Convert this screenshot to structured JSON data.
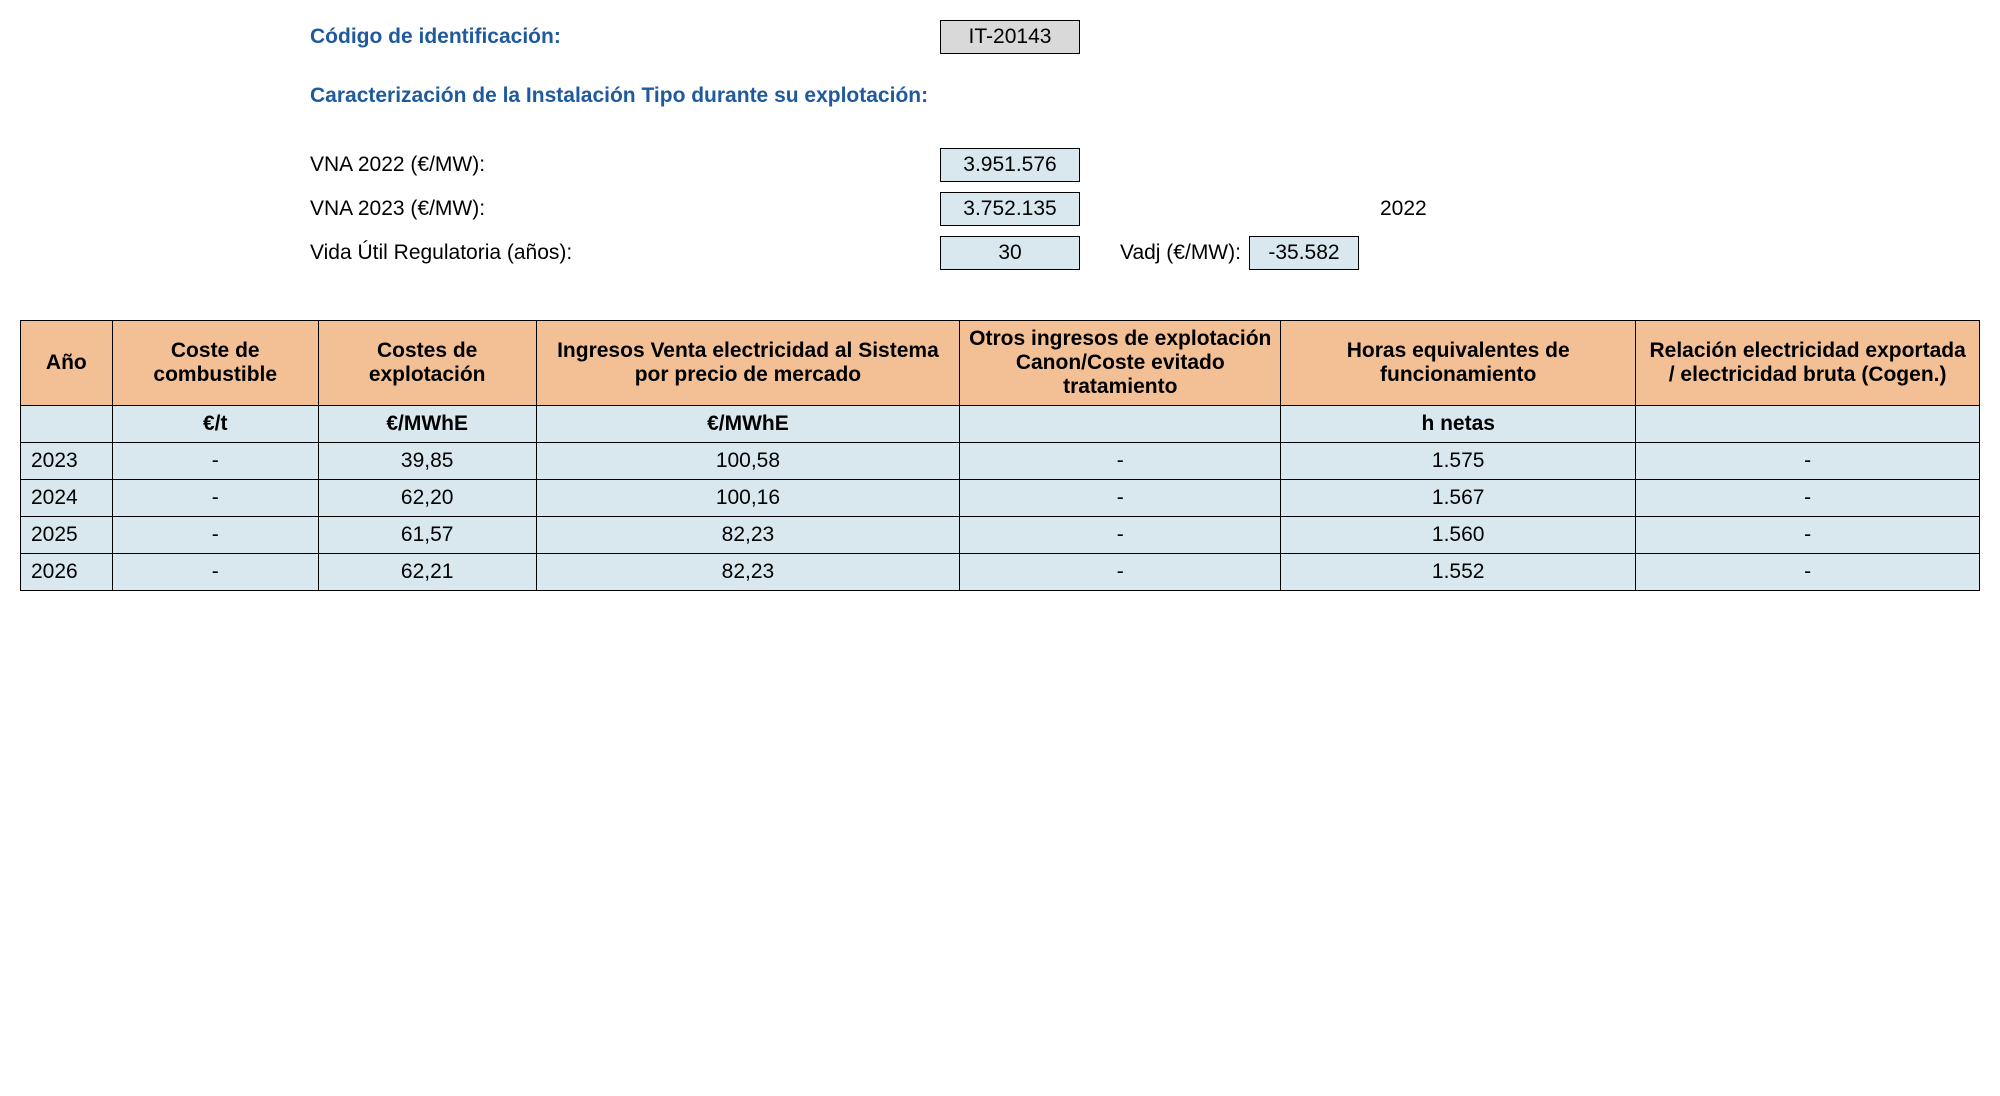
{
  "header": {
    "id_label": "Código de identificación:",
    "id_value": "IT-20143",
    "section_title": "Caracterización de la Instalación Tipo durante su explotación:",
    "vna2022_label": "VNA 2022 (€/MW):",
    "vna2022_value": "3.951.576",
    "vna2023_label": "VNA 2023 (€/MW):",
    "vna2023_value": "3.752.135",
    "vida_label": "Vida Útil Regulatoria (años):",
    "vida_value": "30",
    "vadj_year": "2022",
    "vadj_label": "Vadj (€/MW):",
    "vadj_value": "-35.582"
  },
  "table": {
    "columns": [
      "Año",
      "Coste de combustible",
      "Costes de explotación",
      "Ingresos Venta electricidad al Sistema por precio de mercado",
      "Otros ingresos de explotación Canon/Coste evitado tratamiento",
      "Horas equivalentes de funcionamiento",
      "Relación electricidad exportada / electricidad bruta\n(Cogen.)"
    ],
    "units": [
      "",
      "€/t",
      "€/MWhE",
      "€/MWhE",
      "",
      "h netas",
      ""
    ],
    "rows": [
      [
        "2023",
        "-",
        "39,85",
        "100,58",
        "-",
        "1.575",
        "-"
      ],
      [
        "2024",
        "-",
        "62,20",
        "100,16",
        "-",
        "1.567",
        "-"
      ],
      [
        "2025",
        "-",
        "61,57",
        "82,23",
        "-",
        "1.560",
        "-"
      ],
      [
        "2026",
        "-",
        "62,21",
        "82,23",
        "-",
        "1.552",
        "-"
      ]
    ],
    "header_bg": "#f3c096",
    "cell_bg": "#d9e8ef",
    "border_color": "#000000",
    "label_color": "#1f5a9e",
    "id_box_bg": "#d9d9d9"
  }
}
